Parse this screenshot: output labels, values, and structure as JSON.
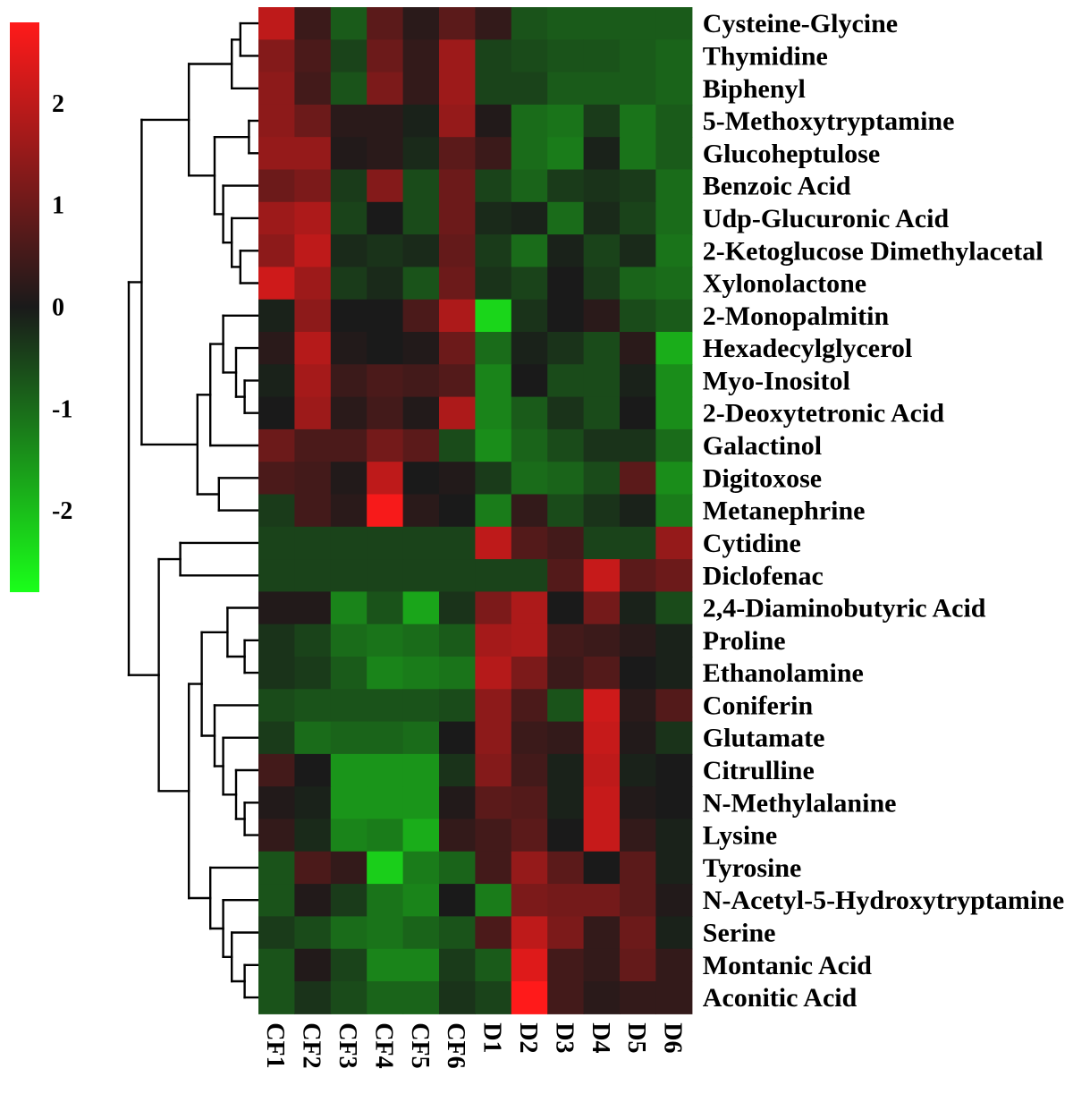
{
  "chart_data": {
    "type": "heatmap",
    "title": "",
    "columns": [
      "CF1",
      "CF2",
      "CF3",
      "CF4",
      "CF5",
      "CF6",
      "D1",
      "D2",
      "D3",
      "D4",
      "D5",
      "D6"
    ],
    "rows": [
      "Cysteine-Glycine",
      "Thymidine",
      "Biphenyl",
      "5-Methoxytryptamine",
      "Glucoheptulose",
      "Benzoic Acid",
      "Udp-Glucuronic Acid",
      "2-Ketoglucose Dimethylacetal",
      "Xylonolactone",
      "2-Monopalmitin",
      "Hexadecylglycerol",
      "Myo-Inositol",
      "2-Deoxytetronic Acid",
      "Galactinol",
      "Digitoxose",
      "Metanephrine",
      "Cytidine",
      "Diclofenac",
      "2,4-Diaminobutyric Acid",
      "Proline",
      "Ethanolamine",
      "Coniferin",
      "Glutamate",
      "Citrulline",
      "N-Methylalanine",
      "Lysine",
      "Tyrosine",
      "N-Acetyl-5-Hydroxytryptamine",
      "Serine",
      "Montanic Acid",
      "Aconitic Acid"
    ],
    "values": [
      [
        2.0,
        0.4,
        -0.8,
        0.8,
        0.2,
        0.8,
        0.3,
        -0.7,
        -0.8,
        -0.8,
        -0.8,
        -0.8
      ],
      [
        1.3,
        0.6,
        -0.5,
        1.0,
        0.3,
        1.6,
        -0.5,
        -0.6,
        -0.7,
        -0.7,
        -0.8,
        -0.9
      ],
      [
        1.4,
        0.5,
        -0.7,
        1.2,
        0.3,
        1.6,
        -0.5,
        -0.5,
        -0.8,
        -0.8,
        -0.8,
        -0.9
      ],
      [
        1.4,
        1.0,
        0.2,
        0.2,
        -0.1,
        1.5,
        0.1,
        -1.0,
        -1.1,
        -0.4,
        -1.1,
        -0.8
      ],
      [
        1.5,
        1.5,
        0.1,
        0.2,
        -0.2,
        0.8,
        0.4,
        -1.0,
        -1.2,
        -0.1,
        -1.1,
        -0.8
      ],
      [
        1.0,
        1.2,
        -0.4,
        1.3,
        -0.6,
        1.0,
        -0.5,
        -0.9,
        -0.4,
        -0.3,
        -0.4,
        -1.0
      ],
      [
        1.6,
        1.8,
        -0.5,
        0.0,
        -0.6,
        1.0,
        -0.2,
        -0.1,
        -1.0,
        -0.2,
        -0.5,
        -1.0
      ],
      [
        1.4,
        2.0,
        -0.2,
        -0.3,
        -0.2,
        0.9,
        -0.4,
        -1.0,
        -0.1,
        -0.5,
        -0.2,
        -1.1
      ],
      [
        2.2,
        1.6,
        -0.4,
        -0.2,
        -0.7,
        1.0,
        -0.3,
        -0.5,
        0.0,
        -0.4,
        -0.9,
        -1.0
      ],
      [
        -0.1,
        1.4,
        0.0,
        0.0,
        0.6,
        1.8,
        -2.3,
        -0.3,
        0.0,
        0.2,
        -0.6,
        -0.8
      ],
      [
        0.2,
        1.9,
        0.1,
        0.0,
        0.1,
        1.0,
        -1.0,
        -0.1,
        -0.3,
        -0.6,
        0.2,
        -1.8
      ],
      [
        -0.1,
        1.7,
        0.4,
        0.6,
        0.5,
        0.7,
        -1.3,
        0.0,
        -0.6,
        -0.6,
        -0.1,
        -1.4
      ],
      [
        0.0,
        1.6,
        0.2,
        0.5,
        0.1,
        1.8,
        -1.3,
        -0.8,
        -0.3,
        -0.6,
        0.0,
        -1.4
      ],
      [
        1.0,
        0.6,
        0.6,
        1.1,
        0.8,
        -0.6,
        -1.4,
        -0.9,
        -0.6,
        -0.3,
        -0.3,
        -1.0
      ],
      [
        0.6,
        0.5,
        0.1,
        2.0,
        0.0,
        0.1,
        -0.4,
        -1.0,
        -0.9,
        -0.6,
        0.8,
        -1.4
      ],
      [
        -0.4,
        0.5,
        0.2,
        2.7,
        0.2,
        0.0,
        -1.2,
        0.3,
        -0.6,
        -0.3,
        -0.1,
        -1.2
      ],
      [
        -0.5,
        -0.5,
        -0.5,
        -0.5,
        -0.5,
        -0.5,
        2.0,
        0.7,
        0.5,
        -0.5,
        -0.5,
        1.5
      ],
      [
        -0.5,
        -0.5,
        -0.5,
        -0.5,
        -0.5,
        -0.5,
        -0.5,
        -0.5,
        0.7,
        2.1,
        0.8,
        1.0
      ],
      [
        0.1,
        0.1,
        -1.3,
        -0.7,
        -1.7,
        -0.3,
        1.2,
        1.8,
        0.0,
        1.1,
        -0.1,
        -0.6
      ],
      [
        -0.3,
        -0.5,
        -1.0,
        -1.1,
        -1.0,
        -0.8,
        1.7,
        1.8,
        0.5,
        0.4,
        0.2,
        -0.1
      ],
      [
        -0.3,
        -0.4,
        -0.8,
        -1.3,
        -1.2,
        -1.1,
        1.9,
        1.2,
        0.4,
        0.7,
        0.0,
        -0.1
      ],
      [
        -0.6,
        -0.7,
        -0.7,
        -0.7,
        -0.7,
        -0.6,
        1.4,
        0.6,
        -0.7,
        2.2,
        0.2,
        0.7
      ],
      [
        -0.4,
        -1.0,
        -0.9,
        -0.9,
        -1.0,
        0.0,
        1.4,
        0.4,
        0.3,
        2.1,
        0.1,
        -0.3
      ],
      [
        0.5,
        0.0,
        -1.5,
        -1.5,
        -1.5,
        -0.3,
        1.3,
        0.5,
        -0.1,
        2.0,
        -0.1,
        0.0
      ],
      [
        0.1,
        -0.1,
        -1.5,
        -1.5,
        -1.5,
        0.1,
        0.8,
        0.7,
        -0.1,
        2.1,
        0.1,
        0.0
      ],
      [
        0.3,
        -0.2,
        -1.3,
        -1.2,
        -1.8,
        0.3,
        0.5,
        0.8,
        0.0,
        2.1,
        0.3,
        -0.1
      ],
      [
        -0.7,
        0.6,
        0.3,
        -2.2,
        -1.2,
        -0.9,
        0.5,
        1.5,
        0.8,
        0.0,
        0.8,
        -0.1
      ],
      [
        -0.7,
        0.1,
        -0.4,
        -1.1,
        -1.3,
        0.0,
        -1.2,
        1.2,
        1.1,
        1.1,
        0.8,
        0.1
      ],
      [
        -0.4,
        -0.6,
        -1.0,
        -1.1,
        -0.9,
        -0.7,
        0.6,
        2.0,
        1.2,
        0.3,
        1.0,
        -0.1
      ],
      [
        -0.7,
        0.1,
        -0.5,
        -1.3,
        -1.3,
        -0.4,
        -0.8,
        2.4,
        0.5,
        0.3,
        0.9,
        0.3
      ],
      [
        -0.7,
        -0.3,
        -0.6,
        -0.9,
        -0.9,
        -0.3,
        -0.5,
        2.8,
        0.5,
        0.2,
        0.3,
        0.3
      ]
    ],
    "color_scale": {
      "min": -2.8,
      "max": 2.8,
      "low_color": "#1aff1a",
      "mid_color": "#1a1a1a",
      "high_color": "#ff1a1a",
      "ticks": [
        2,
        1,
        0,
        -1,
        -2
      ],
      "tick_labels": [
        "2",
        "1",
        "0",
        "-1",
        "-2"
      ]
    },
    "row_dendrogram": {
      "nodes": [
        {
          "id": "n1",
          "children": [
            0,
            1
          ],
          "height": 0.4
        },
        {
          "id": "n2",
          "children": [
            "n1",
            2
          ],
          "height": 0.6
        },
        {
          "id": "n3",
          "children": [
            3,
            4
          ],
          "height": 0.2
        },
        {
          "id": "n4",
          "children": [
            7,
            8
          ],
          "height": 0.4
        },
        {
          "id": "n5",
          "children": [
            6,
            "n4"
          ],
          "height": 0.6
        },
        {
          "id": "n6",
          "children": [
            5,
            "n5"
          ],
          "height": 0.8
        },
        {
          "id": "n7",
          "children": [
            "n3",
            "n6"
          ],
          "height": 1.0
        },
        {
          "id": "n8",
          "children": [
            "n2",
            "n7"
          ],
          "height": 1.6
        },
        {
          "id": "n9",
          "children": [
            11,
            12
          ],
          "height": 0.3
        },
        {
          "id": "n10",
          "children": [
            10,
            "n9"
          ],
          "height": 0.5
        },
        {
          "id": "n11",
          "children": [
            9,
            "n10"
          ],
          "height": 0.8
        },
        {
          "id": "n12",
          "children": [
            "n11",
            13
          ],
          "height": 1.1
        },
        {
          "id": "n13",
          "children": [
            14,
            15
          ],
          "height": 0.9
        },
        {
          "id": "n14",
          "children": [
            "n12",
            "n13"
          ],
          "height": 1.4
        },
        {
          "id": "n15",
          "children": [
            "n8",
            "n14"
          ],
          "height": 2.7
        },
        {
          "id": "n16",
          "children": [
            16,
            17
          ],
          "height": 1.8
        },
        {
          "id": "n17",
          "children": [
            19,
            20
          ],
          "height": 0.3
        },
        {
          "id": "n18",
          "children": [
            18,
            "n17"
          ],
          "height": 0.7
        },
        {
          "id": "n19",
          "children": [
            24,
            25
          ],
          "height": 0.3
        },
        {
          "id": "n20",
          "children": [
            23,
            "n19"
          ],
          "height": 0.5
        },
        {
          "id": "n21",
          "children": [
            22,
            "n20"
          ],
          "height": 0.8
        },
        {
          "id": "n22",
          "children": [
            21,
            "n21"
          ],
          "height": 1.0
        },
        {
          "id": "n23",
          "children": [
            "n18",
            "n22"
          ],
          "height": 1.3
        },
        {
          "id": "n24",
          "children": [
            29,
            30
          ],
          "height": 0.3
        },
        {
          "id": "n25",
          "children": [
            28,
            "n24"
          ],
          "height": 0.6
        },
        {
          "id": "n26",
          "children": [
            27,
            "n25"
          ],
          "height": 0.8
        },
        {
          "id": "n27",
          "children": [
            26,
            "n26"
          ],
          "height": 1.1
        },
        {
          "id": "n28",
          "children": [
            "n23",
            "n27"
          ],
          "height": 1.6
        },
        {
          "id": "n29",
          "children": [
            "n16",
            "n28"
          ],
          "height": 2.3
        },
        {
          "id": "n30",
          "children": [
            "n15",
            "n29"
          ],
          "height": 3.0
        }
      ]
    }
  }
}
